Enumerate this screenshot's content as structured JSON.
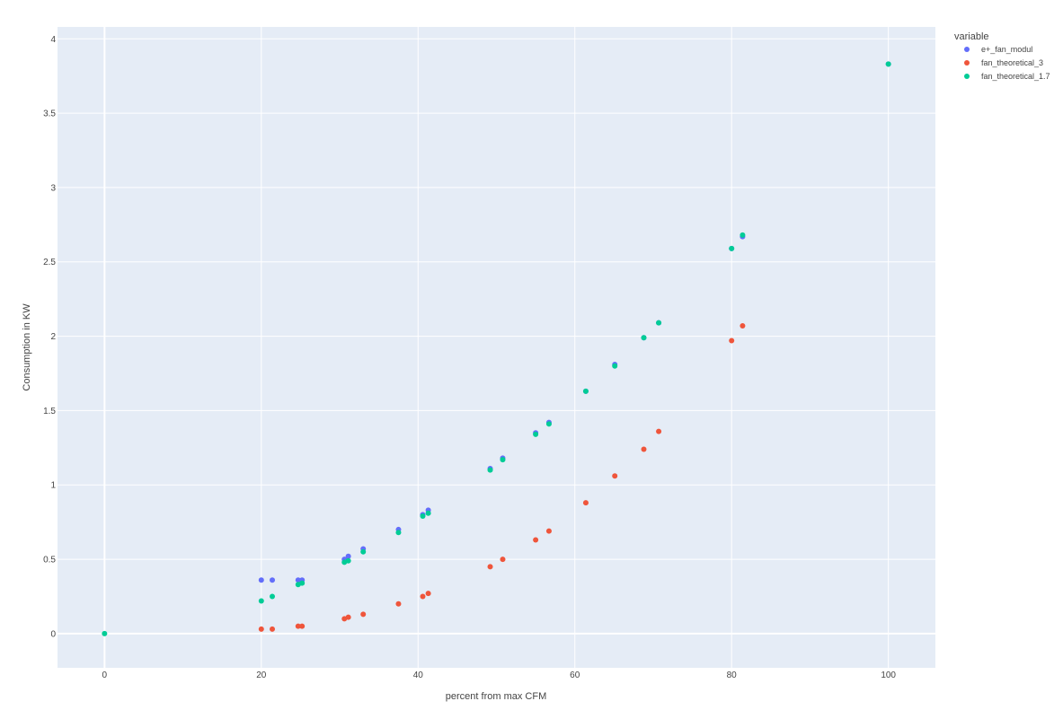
{
  "chart_data": {
    "type": "scatter",
    "xlabel": "percent from max CFM",
    "ylabel": "Consumption in KW",
    "xlim": [
      -6,
      106
    ],
    "ylim": [
      -0.23,
      4.08
    ],
    "x_ticks": [
      0,
      20,
      40,
      60,
      80,
      100
    ],
    "x_tick_labels": [
      "0",
      "20",
      "40",
      "60",
      "80",
      "100"
    ],
    "y_ticks": [
      0,
      0.5,
      1,
      1.5,
      2,
      2.5,
      3,
      3.5,
      4
    ],
    "y_tick_labels": [
      "0",
      "0.5",
      "1",
      "1.5",
      "2",
      "2.5",
      "3",
      "3.5",
      "4"
    ],
    "grid": true,
    "legend": {
      "title": "variable",
      "position": "top-right"
    },
    "series": [
      {
        "name": "e+_fan_modul",
        "color": "#636efa",
        "x": [
          20.0,
          21.4,
          24.7,
          25.2,
          30.6,
          31.1,
          33.0,
          37.5,
          40.6,
          41.3,
          49.2,
          50.8,
          55.0,
          56.7,
          61.4,
          65.1,
          68.8,
          70.7,
          80.0,
          81.4,
          100.0
        ],
        "y": [
          0.36,
          0.36,
          0.36,
          0.36,
          0.5,
          0.52,
          0.57,
          0.7,
          0.8,
          0.83,
          1.11,
          1.18,
          1.35,
          1.42,
          1.63,
          1.81,
          1.99,
          2.09,
          2.59,
          2.67,
          3.83
        ]
      },
      {
        "name": "fan_theoretical_3",
        "color": "#ef553b",
        "x": [
          20.0,
          21.4,
          24.7,
          25.2,
          30.6,
          31.1,
          33.0,
          37.5,
          40.6,
          41.3,
          49.2,
          50.8,
          55.0,
          56.7,
          61.4,
          65.1,
          68.8,
          70.7,
          80.0,
          81.4
        ],
        "y": [
          0.03,
          0.03,
          0.05,
          0.05,
          0.1,
          0.11,
          0.13,
          0.2,
          0.25,
          0.27,
          0.45,
          0.5,
          0.63,
          0.69,
          0.88,
          1.06,
          1.24,
          1.36,
          1.97,
          2.07
        ]
      },
      {
        "name": "fan_theoretical_1.7",
        "color": "#00cc96",
        "x": [
          0.0,
          20.0,
          21.4,
          24.7,
          25.2,
          30.6,
          31.1,
          33.0,
          37.5,
          40.6,
          41.3,
          49.2,
          50.8,
          55.0,
          56.7,
          61.4,
          65.1,
          68.8,
          70.7,
          80.0,
          81.4,
          100.0
        ],
        "y": [
          0.0,
          0.22,
          0.25,
          0.33,
          0.34,
          0.48,
          0.49,
          0.55,
          0.68,
          0.79,
          0.81,
          1.1,
          1.17,
          1.34,
          1.41,
          1.63,
          1.8,
          1.99,
          2.09,
          2.59,
          2.68,
          3.83
        ]
      }
    ]
  }
}
